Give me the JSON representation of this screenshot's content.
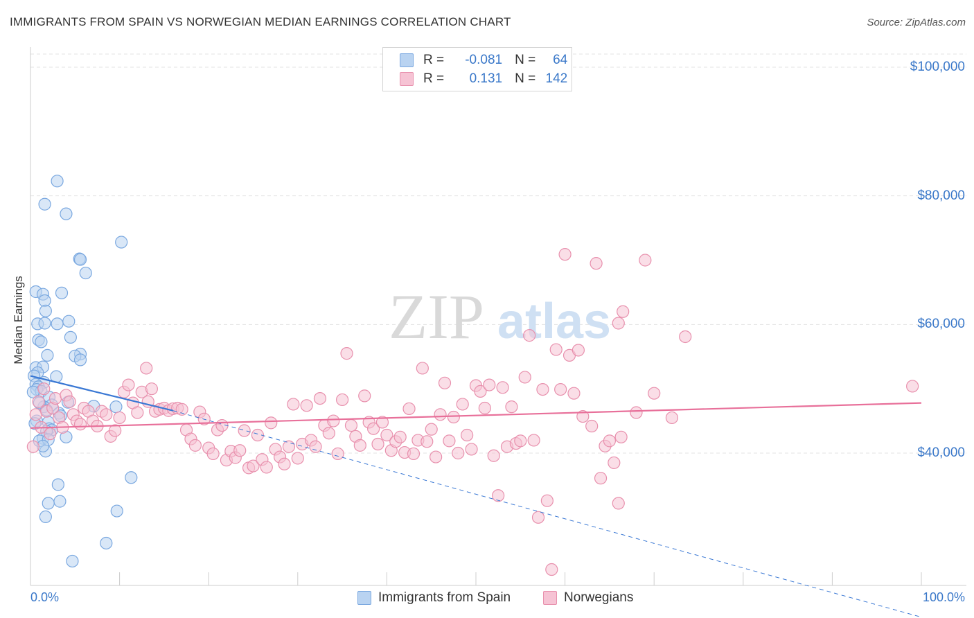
{
  "title": "IMMIGRANTS FROM SPAIN VS NORWEGIAN MEDIAN EARNINGS CORRELATION CHART",
  "source": "Source: ZipAtlas.com",
  "watermark": {
    "zip": "ZIP",
    "atlas": "atlas"
  },
  "colors": {
    "blue_fill": "#b9d3f1",
    "blue_stroke": "#7aa8e0",
    "blue_line": "#3a78d4",
    "pink_fill": "#f6c3d4",
    "pink_stroke": "#e890ad",
    "pink_line": "#e8709a",
    "tick_text": "#3a78c9",
    "grid": "#e3e3e3"
  },
  "legend": {
    "rows": [
      {
        "r_label": "R =",
        "r_value": "-0.081",
        "n_label": "N =",
        "n_value": "64",
        "color": "blue"
      },
      {
        "r_label": "R =",
        "r_value": "0.131",
        "n_label": "N =",
        "n_value": "142",
        "color": "pink"
      }
    ]
  },
  "bottom_legend": {
    "series1": "Immigrants from Spain",
    "series2": "Norwegians"
  },
  "chart_data": {
    "type": "scatter",
    "xlabel": "",
    "ylabel": "Median Earnings",
    "xlim": [
      0,
      100
    ],
    "ylim": [
      22000,
      103000
    ],
    "x_tick_labels": {
      "min": "0.0%",
      "max": "100.0%"
    },
    "y_ticks": [
      {
        "value": 40000,
        "label": "$40,000"
      },
      {
        "value": 60000,
        "label": "$60,000"
      },
      {
        "value": 80000,
        "label": "$80,000"
      },
      {
        "value": 100000,
        "label": "$100,000"
      }
    ],
    "grid": true,
    "legend_position": "top-center",
    "series": [
      {
        "name": "Immigrants from Spain",
        "color": "blue",
        "trend": {
          "x1": 0,
          "y1": 52000,
          "x2": 16,
          "y2": 46600,
          "dashed_to_x": 100,
          "dashed_to_y": 14500
        },
        "points": [
          [
            3.0,
            82300
          ],
          [
            1.6,
            78700
          ],
          [
            4.0,
            77200
          ],
          [
            10.2,
            72800
          ],
          [
            5.5,
            70200
          ],
          [
            5.6,
            70100
          ],
          [
            6.2,
            68000
          ],
          [
            0.6,
            65100
          ],
          [
            3.5,
            64900
          ],
          [
            1.4,
            64700
          ],
          [
            1.6,
            63700
          ],
          [
            1.7,
            62100
          ],
          [
            0.8,
            60100
          ],
          [
            3.0,
            60100
          ],
          [
            4.3,
            60500
          ],
          [
            1.6,
            60200
          ],
          [
            0.9,
            57600
          ],
          [
            1.2,
            57300
          ],
          [
            4.5,
            58000
          ],
          [
            5.6,
            55400
          ],
          [
            5.0,
            55100
          ],
          [
            5.6,
            54500
          ],
          [
            1.9,
            55200
          ],
          [
            0.6,
            53300
          ],
          [
            1.4,
            53400
          ],
          [
            0.8,
            52500
          ],
          [
            0.4,
            52000
          ],
          [
            2.9,
            51900
          ],
          [
            1.5,
            51000
          ],
          [
            0.6,
            50700
          ],
          [
            0.9,
            50300
          ],
          [
            0.7,
            49900
          ],
          [
            1.2,
            49600
          ],
          [
            0.3,
            49500
          ],
          [
            2.1,
            48700
          ],
          [
            2.4,
            47500
          ],
          [
            1.5,
            47200
          ],
          [
            7.1,
            47300
          ],
          [
            9.6,
            47200
          ],
          [
            4.2,
            47900
          ],
          [
            3.2,
            46200
          ],
          [
            1.8,
            46700
          ],
          [
            3.4,
            45800
          ],
          [
            0.7,
            45000
          ],
          [
            2.0,
            44800
          ],
          [
            0.5,
            44600
          ],
          [
            2.1,
            43800
          ],
          [
            2.4,
            43600
          ],
          [
            1.8,
            43400
          ],
          [
            1.4,
            42300
          ],
          [
            4.0,
            42500
          ],
          [
            1.0,
            41900
          ],
          [
            2.0,
            42100
          ],
          [
            1.7,
            40300
          ],
          [
            1.4,
            41100
          ],
          [
            11.3,
            36200
          ],
          [
            3.1,
            35100
          ],
          [
            3.3,
            32500
          ],
          [
            2.0,
            32200
          ],
          [
            9.7,
            31000
          ],
          [
            1.7,
            30100
          ],
          [
            8.5,
            26000
          ],
          [
            4.7,
            23200
          ],
          [
            1.0,
            47800
          ]
        ]
      },
      {
        "name": "Norwegians",
        "color": "pink",
        "trend": {
          "x1": 0,
          "y1": 43900,
          "x2": 100,
          "y2": 47800
        },
        "points": [
          [
            0.3,
            41000
          ],
          [
            0.6,
            46000
          ],
          [
            0.9,
            48000
          ],
          [
            1.2,
            44000
          ],
          [
            1.5,
            50000
          ],
          [
            1.8,
            46500
          ],
          [
            2.2,
            43000
          ],
          [
            2.5,
            47000
          ],
          [
            2.8,
            48500
          ],
          [
            3.2,
            45500
          ],
          [
            3.6,
            44000
          ],
          [
            4.0,
            49000
          ],
          [
            4.4,
            48000
          ],
          [
            4.8,
            46000
          ],
          [
            5.2,
            45000
          ],
          [
            5.6,
            44500
          ],
          [
            6.0,
            47000
          ],
          [
            6.5,
            46500
          ],
          [
            7.0,
            45000
          ],
          [
            7.5,
            44200
          ],
          [
            8.0,
            46500
          ],
          [
            8.5,
            46000
          ],
          [
            9.0,
            42600
          ],
          [
            9.5,
            43500
          ],
          [
            10.0,
            45500
          ],
          [
            10.5,
            49500
          ],
          [
            11.0,
            50600
          ],
          [
            11.5,
            47800
          ],
          [
            12.0,
            46300
          ],
          [
            12.5,
            49500
          ],
          [
            13.0,
            53200
          ],
          [
            13.2,
            48000
          ],
          [
            13.6,
            50000
          ],
          [
            14.0,
            46500
          ],
          [
            14.5,
            46800
          ],
          [
            15.0,
            47000
          ],
          [
            15.5,
            46600
          ],
          [
            16.0,
            46900
          ],
          [
            16.5,
            47000
          ],
          [
            17.0,
            46800
          ],
          [
            17.5,
            43600
          ],
          [
            18.0,
            42200
          ],
          [
            18.5,
            41200
          ],
          [
            19.0,
            46400
          ],
          [
            19.5,
            45300
          ],
          [
            20.0,
            40800
          ],
          [
            20.5,
            39900
          ],
          [
            21.0,
            43600
          ],
          [
            21.5,
            44300
          ],
          [
            22.0,
            38900
          ],
          [
            22.5,
            40300
          ],
          [
            23.0,
            39300
          ],
          [
            23.5,
            40400
          ],
          [
            24.0,
            43500
          ],
          [
            24.5,
            37700
          ],
          [
            25.0,
            38000
          ],
          [
            25.5,
            42800
          ],
          [
            26.0,
            39000
          ],
          [
            26.5,
            37800
          ],
          [
            27.0,
            44700
          ],
          [
            27.5,
            40600
          ],
          [
            28.0,
            39400
          ],
          [
            28.5,
            38300
          ],
          [
            29.0,
            41000
          ],
          [
            29.5,
            47600
          ],
          [
            30.0,
            39200
          ],
          [
            30.5,
            41400
          ],
          [
            31.0,
            47400
          ],
          [
            31.5,
            42000
          ],
          [
            32.0,
            41000
          ],
          [
            32.5,
            48500
          ],
          [
            33.0,
            44300
          ],
          [
            33.5,
            43100
          ],
          [
            34.0,
            45000
          ],
          [
            34.5,
            39900
          ],
          [
            35.0,
            48300
          ],
          [
            35.5,
            55500
          ],
          [
            36.0,
            44300
          ],
          [
            36.5,
            42600
          ],
          [
            37.0,
            41200
          ],
          [
            37.5,
            48900
          ],
          [
            38.0,
            44800
          ],
          [
            38.5,
            43800
          ],
          [
            39.0,
            41400
          ],
          [
            39.5,
            44800
          ],
          [
            40.0,
            42800
          ],
          [
            40.5,
            40400
          ],
          [
            41.0,
            41800
          ],
          [
            41.5,
            42500
          ],
          [
            42.0,
            40100
          ],
          [
            42.5,
            46900
          ],
          [
            43.0,
            39900
          ],
          [
            43.5,
            42000
          ],
          [
            44.0,
            53200
          ],
          [
            44.5,
            41800
          ],
          [
            45.0,
            43700
          ],
          [
            45.5,
            39400
          ],
          [
            46.0,
            46000
          ],
          [
            46.5,
            50900
          ],
          [
            47.0,
            41900
          ],
          [
            47.5,
            45600
          ],
          [
            48.0,
            40000
          ],
          [
            48.5,
            47600
          ],
          [
            49.0,
            42800
          ],
          [
            49.5,
            40600
          ],
          [
            50.0,
            50500
          ],
          [
            50.5,
            49600
          ],
          [
            51.0,
            47000
          ],
          [
            51.5,
            50600
          ],
          [
            52.0,
            39600
          ],
          [
            52.5,
            33400
          ],
          [
            53.0,
            50200
          ],
          [
            53.5,
            41000
          ],
          [
            54.0,
            47200
          ],
          [
            54.5,
            41500
          ],
          [
            55.0,
            41900
          ],
          [
            55.5,
            51800
          ],
          [
            56.0,
            58300
          ],
          [
            56.5,
            42000
          ],
          [
            57.0,
            30000
          ],
          [
            57.5,
            49900
          ],
          [
            58.0,
            32600
          ],
          [
            58.5,
            21900
          ],
          [
            59.0,
            56100
          ],
          [
            59.5,
            49900
          ],
          [
            60.0,
            70900
          ],
          [
            60.5,
            55200
          ],
          [
            61.0,
            49300
          ],
          [
            61.5,
            56000
          ],
          [
            62.0,
            45700
          ],
          [
            63.0,
            44200
          ],
          [
            63.5,
            69500
          ],
          [
            64.0,
            36100
          ],
          [
            64.5,
            41100
          ],
          [
            65.0,
            41900
          ],
          [
            65.5,
            38500
          ],
          [
            66.0,
            60200
          ],
          [
            66.5,
            62000
          ],
          [
            68.0,
            46300
          ],
          [
            69.0,
            70000
          ],
          [
            70.0,
            49300
          ],
          [
            72.0,
            45500
          ],
          [
            73.5,
            58100
          ],
          [
            99.0,
            50400
          ],
          [
            66.3,
            42500
          ],
          [
            66.0,
            32200
          ]
        ]
      }
    ]
  }
}
